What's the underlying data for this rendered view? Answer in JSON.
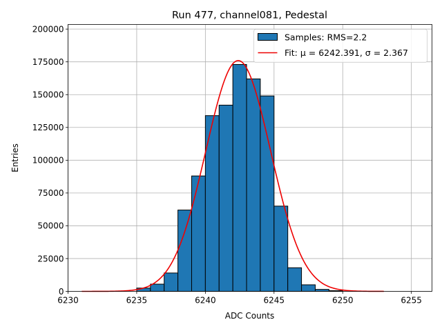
{
  "chart_data": {
    "type": "bar",
    "title": "Run 477, channel081, Pedestal",
    "xlabel": "ADC Counts",
    "ylabel": "Entries",
    "xlim": [
      6230,
      6256.5
    ],
    "ylim": [
      0,
      203500
    ],
    "xticks": [
      6230,
      6235,
      6240,
      6245,
      6250,
      6255
    ],
    "yticks": [
      0,
      25000,
      50000,
      75000,
      100000,
      125000,
      150000,
      175000,
      200000
    ],
    "grid": true,
    "legend_position": "top-right",
    "histogram": {
      "name": "Samples: RMS=2.2",
      "color": "#1f77b4",
      "bin_width": 1,
      "bin_starts": [
        6235,
        6236,
        6237,
        6238,
        6239,
        6240,
        6241,
        6242,
        6243,
        6244,
        6245,
        6246,
        6247,
        6248,
        6249
      ],
      "values": [
        2500,
        5500,
        14000,
        62000,
        88000,
        134000,
        142000,
        173000,
        162000,
        149000,
        65000,
        18000,
        5000,
        1500,
        500
      ]
    },
    "fit": {
      "name": "Fit: μ = 6242.391, σ = 2.367",
      "color": "#ee0000",
      "mu": 6242.391,
      "sigma": 2.367,
      "amplitude": 176000,
      "x_range": [
        6231,
        6253
      ]
    }
  }
}
